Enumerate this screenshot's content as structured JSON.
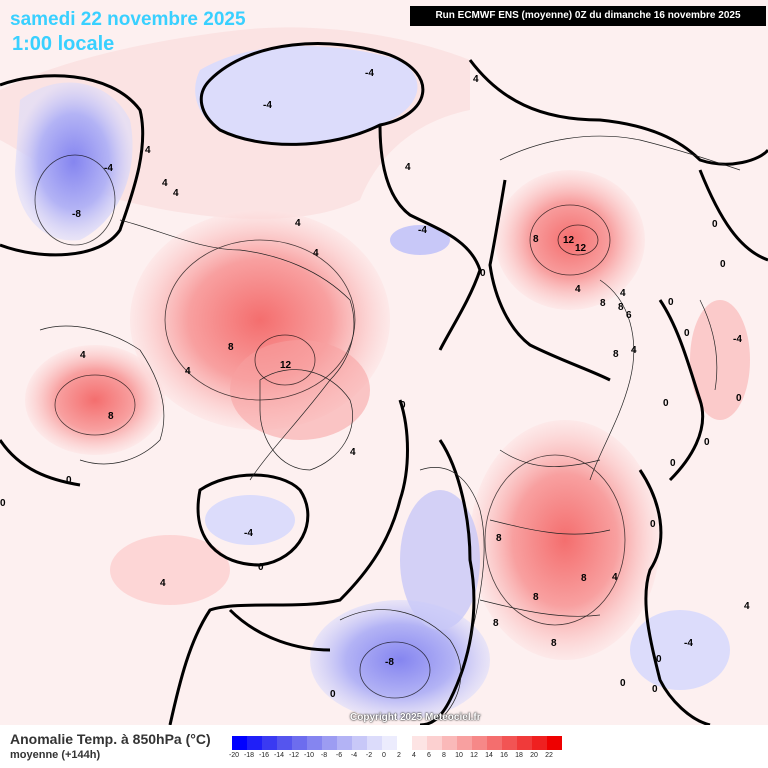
{
  "header": {
    "date": "samedi 22 novembre 2025",
    "local_time": "1:00 locale",
    "run_info": "Run ECMWF ENS (moyenne) 0Z du dimanche 16 novembre 2025"
  },
  "footer": {
    "title": "Anomalie Temp. à 850hPa (°C)",
    "subtitle": "moyenne   (+144h)",
    "copyright": "Copyright 2025 Meteociel.fr"
  },
  "legend": {
    "ticks": [
      "-20",
      "-18",
      "-16",
      "-14",
      "-12",
      "-10",
      "-8",
      "-6",
      "-4",
      "-2",
      "0",
      "2",
      "4",
      "6",
      "8",
      "10",
      "12",
      "14",
      "16",
      "18",
      "20",
      "22"
    ],
    "colors": [
      "#0000ff",
      "#1f1ff8",
      "#3a3af2",
      "#5555ee",
      "#6d6dee",
      "#8585f0",
      "#9c9cf2",
      "#b3b3f5",
      "#c8c8f8",
      "#dcdcfb",
      "#ececfd",
      "#ffffff",
      "#fde4e4",
      "#fcd0d0",
      "#fab9b9",
      "#f8a0a0",
      "#f68888",
      "#f46e6e",
      "#f25454",
      "#f03a3a",
      "#ef2020",
      "#ee0000"
    ]
  },
  "map_labels": [
    {
      "id": "lbl-1",
      "text": "-4"
    },
    {
      "id": "lbl-2",
      "text": "-4"
    },
    {
      "id": "lbl-3",
      "text": "4"
    },
    {
      "id": "lbl-4",
      "text": "-4"
    },
    {
      "id": "lbl-5",
      "text": "-8"
    },
    {
      "id": "lbl-6",
      "text": "4"
    },
    {
      "id": "lbl-7",
      "text": "4"
    },
    {
      "id": "lbl-8",
      "text": "4"
    },
    {
      "id": "lbl-9",
      "text": "4"
    },
    {
      "id": "lbl-10",
      "text": "4"
    },
    {
      "id": "lbl-11",
      "text": "-4"
    },
    {
      "id": "lbl-12",
      "text": "0"
    },
    {
      "id": "lbl-13",
      "text": "8"
    },
    {
      "id": "lbl-14",
      "text": "12"
    },
    {
      "id": "lbl-15",
      "text": "12"
    },
    {
      "id": "lbl-16",
      "text": "0"
    },
    {
      "id": "lbl-17",
      "text": "0"
    },
    {
      "id": "lbl-18",
      "text": "8"
    },
    {
      "id": "lbl-19",
      "text": "12"
    },
    {
      "id": "lbl-20",
      "text": "4"
    },
    {
      "id": "lbl-21",
      "text": "8"
    },
    {
      "id": "lbl-22",
      "text": "4"
    },
    {
      "id": "lbl-23",
      "text": "8"
    },
    {
      "id": "lbl-24",
      "text": "4"
    },
    {
      "id": "lbl-25",
      "text": "0"
    },
    {
      "id": "lbl-26",
      "text": "4"
    },
    {
      "id": "lbl-27",
      "text": "4"
    },
    {
      "id": "lbl-28",
      "text": "0"
    },
    {
      "id": "lbl-29",
      "text": "8"
    },
    {
      "id": "lbl-30",
      "text": "6"
    },
    {
      "id": "lbl-31",
      "text": "4"
    },
    {
      "id": "lbl-32",
      "text": "8"
    },
    {
      "id": "lbl-33",
      "text": "0"
    },
    {
      "id": "lbl-34",
      "text": "0"
    },
    {
      "id": "lbl-35",
      "text": "-4"
    },
    {
      "id": "lbl-36",
      "text": "0"
    },
    {
      "id": "lbl-37",
      "text": "4"
    },
    {
      "id": "lbl-38",
      "text": "8"
    },
    {
      "id": "lbl-39",
      "text": "8"
    },
    {
      "id": "lbl-40",
      "text": "8"
    },
    {
      "id": "lbl-41",
      "text": "4"
    },
    {
      "id": "lbl-42",
      "text": "8"
    },
    {
      "id": "lbl-43",
      "text": "8"
    },
    {
      "id": "lbl-44",
      "text": "-8"
    },
    {
      "id": "lbl-45",
      "text": "-4"
    },
    {
      "id": "lbl-46",
      "text": "0"
    },
    {
      "id": "lbl-47",
      "text": "0"
    },
    {
      "id": "lbl-48",
      "text": "0"
    },
    {
      "id": "lbl-49",
      "text": "4"
    },
    {
      "id": "lbl-50",
      "text": "0"
    },
    {
      "id": "lbl-51",
      "text": "-4"
    },
    {
      "id": "lbl-52",
      "text": "0"
    },
    {
      "id": "lbl-53",
      "text": "0"
    },
    {
      "id": "lbl-54",
      "text": "0"
    },
    {
      "id": "lbl-55",
      "text": "0"
    },
    {
      "id": "lbl-56",
      "text": "0"
    },
    {
      "id": "lbl-57",
      "text": "4"
    },
    {
      "id": "lbl-58",
      "text": "0"
    }
  ]
}
